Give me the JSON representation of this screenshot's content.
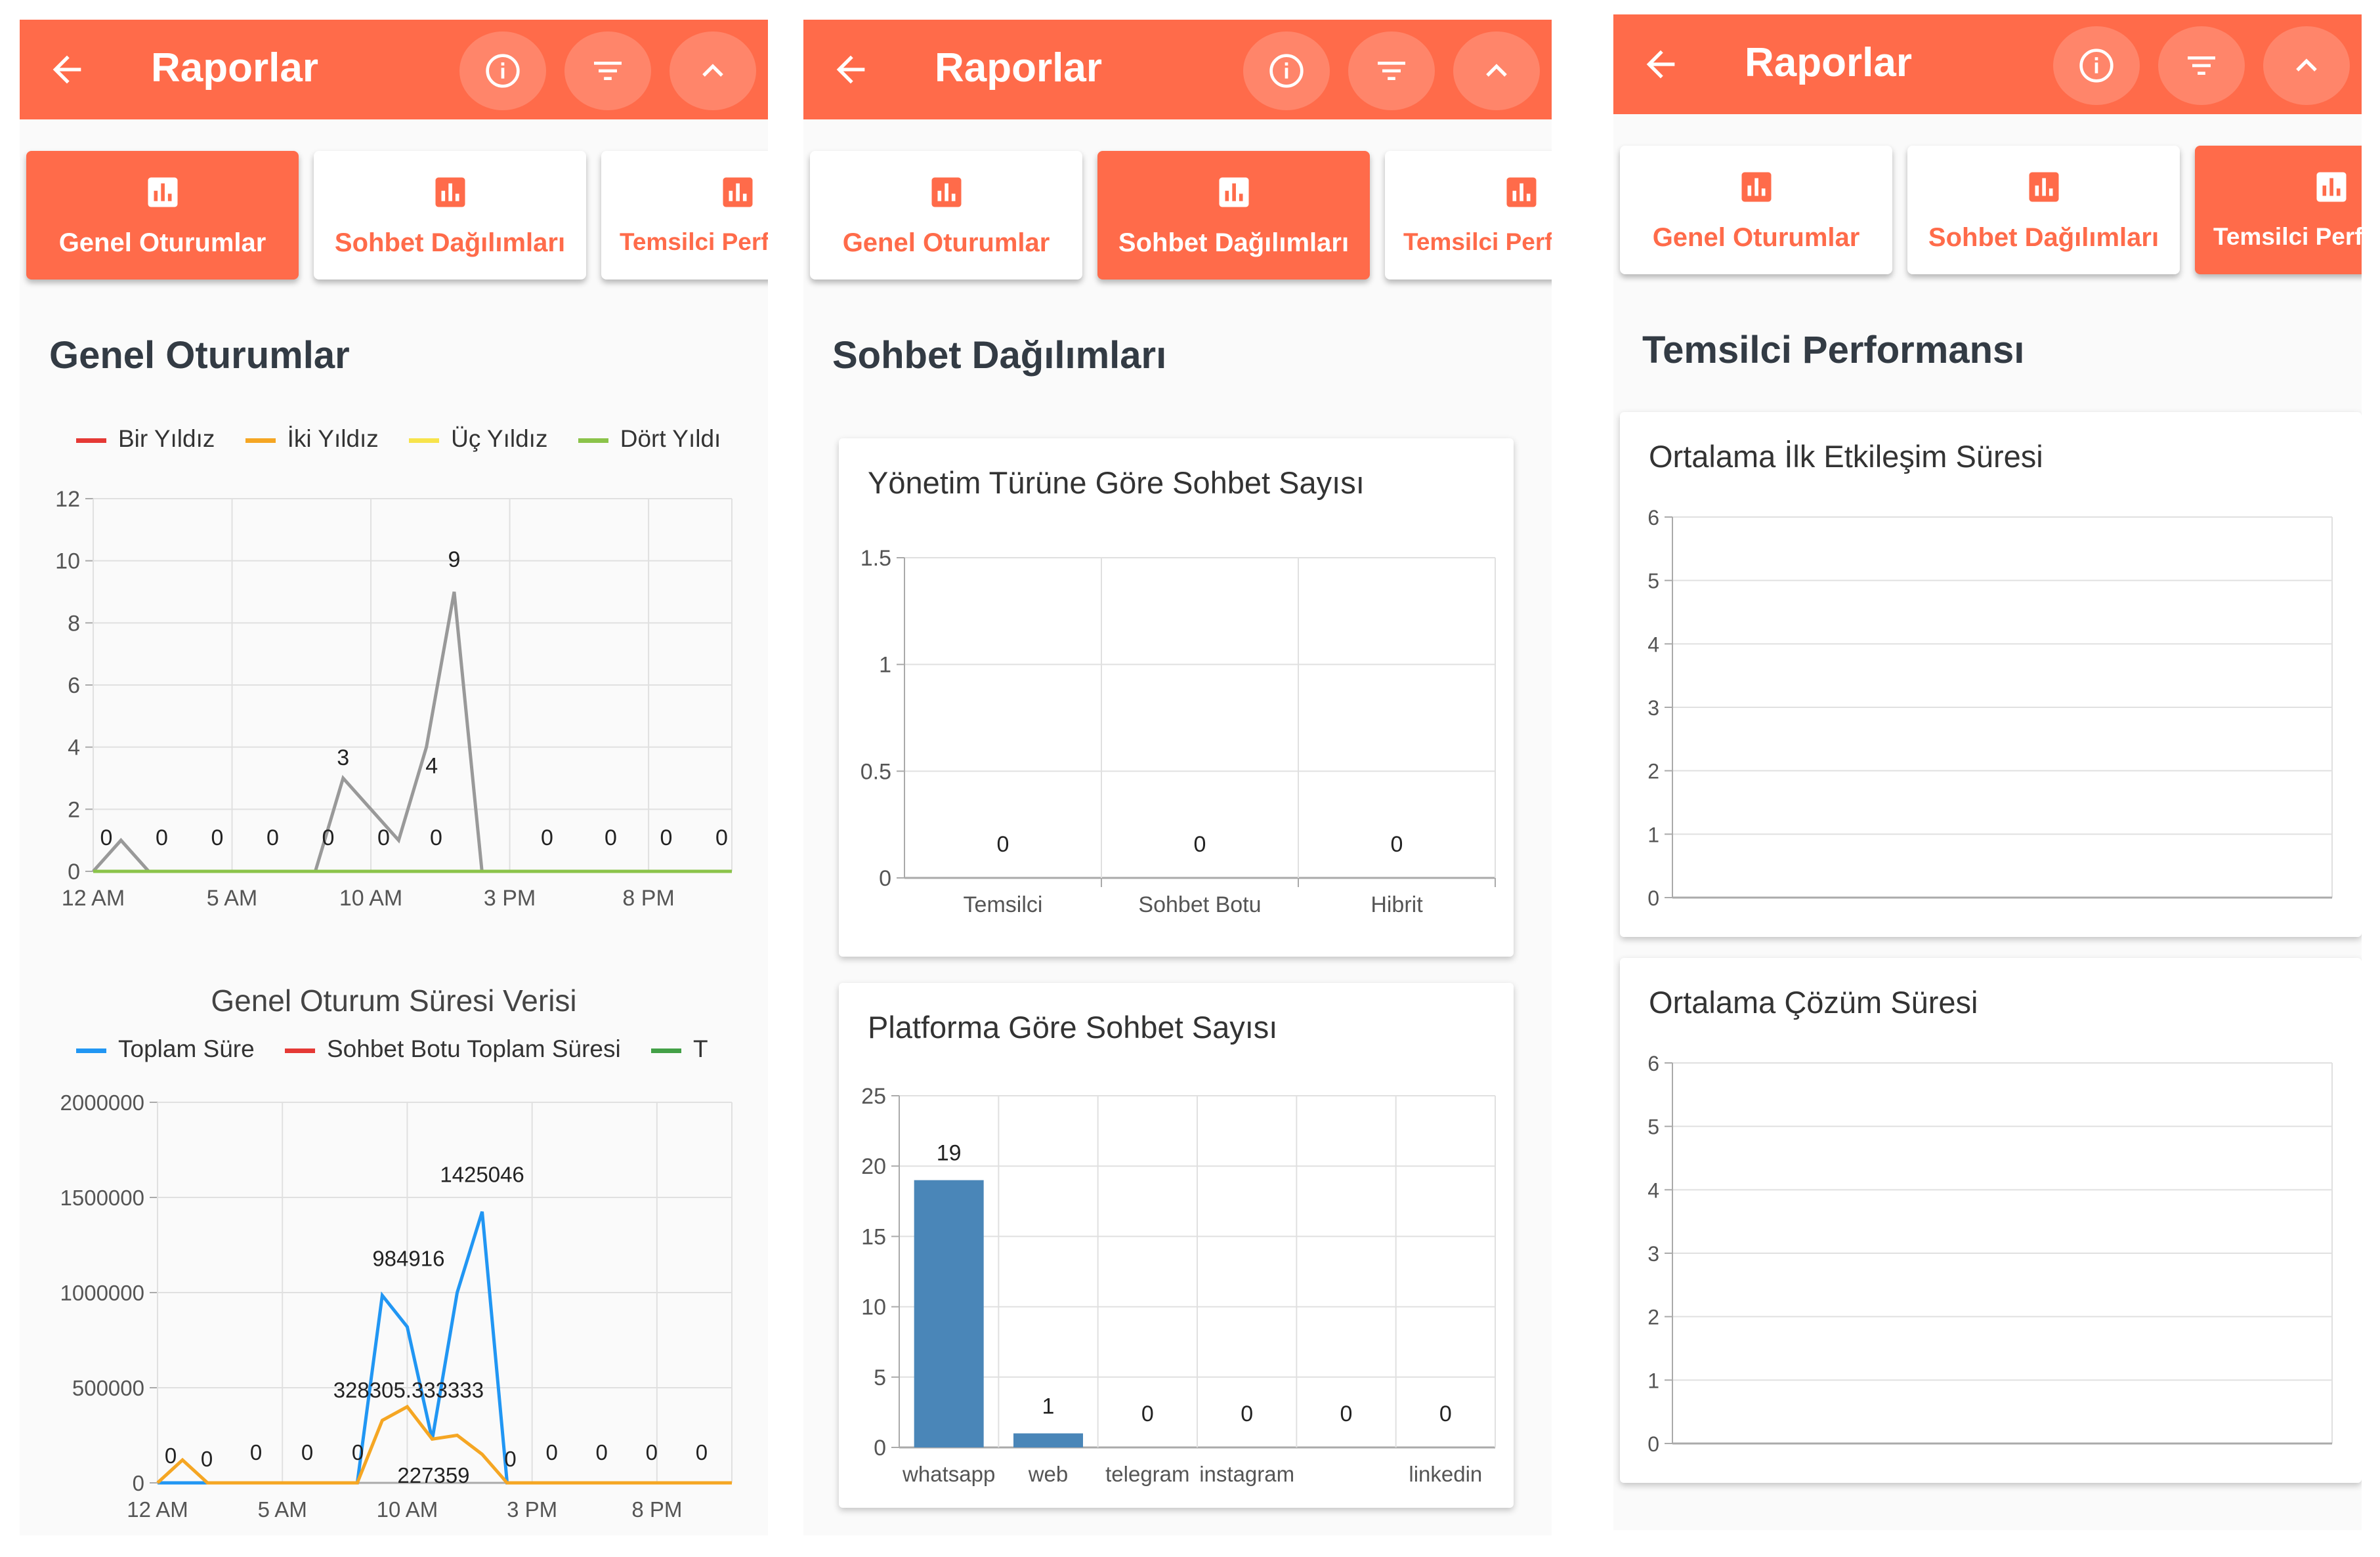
{
  "app": {
    "title": "Raporlar",
    "tabs": [
      "Genel Oturumlar",
      "Sohbet Dağılımları",
      "Temsilci Perf"
    ],
    "colors": {
      "accent": "#ff6b4a",
      "white": "#ffffff"
    },
    "icons": {
      "back": "arrow-left-icon",
      "info": "info-icon",
      "filter": "filter-icon",
      "collapse": "chevron-up-icon",
      "tab": "bar-chart-icon"
    }
  },
  "panel1": {
    "section_title": "Genel Oturumlar",
    "legend1": [
      "Bir Yıldız",
      "İki Yıldız",
      "Üç Yıldız",
      "Dört Yıldı"
    ],
    "legend1_colors": [
      "#e53935",
      "#f5a623",
      "#f7e34b",
      "#8bc34a"
    ],
    "chart2_title": "Genel Oturum Süresi Verisi",
    "legend2": [
      "Toplam Süre",
      "Sohbet Botu Toplam Süresi",
      "T"
    ],
    "legend2_colors": [
      "#2196f3",
      "#e53935",
      "#43a047"
    ]
  },
  "panel2": {
    "section_title": "Sohbet Dağılımları",
    "card1_title": "Yönetim Türüne Göre Sohbet Sayısı",
    "card2_title": "Platforma Göre Sohbet Sayısı"
  },
  "panel3": {
    "section_title": "Temsilci Performansı",
    "card1_title": "Ortalama İlk Etkileşim Süresi",
    "card2_title": "Ortalama Çözüm Süresi"
  },
  "chart_data": [
    {
      "type": "line",
      "x": [
        "12 AM",
        "1 AM",
        "2 AM",
        "3 AM",
        "4 AM",
        "5 AM",
        "6 AM",
        "7 AM",
        "8 AM",
        "9 AM",
        "10 AM",
        "11 AM",
        "12 PM",
        "1 PM",
        "2 PM",
        "3 PM",
        "4 PM",
        "5 PM",
        "6 PM",
        "7 PM",
        "8 PM",
        "9 PM",
        "10 PM",
        "11 PM"
      ],
      "xticks": [
        "12 AM",
        "5 AM",
        "10 AM",
        "3 PM",
        "8 PM"
      ],
      "yticks": [
        "0",
        "2",
        "4",
        "6",
        "8",
        "10",
        "12"
      ],
      "ylim": [
        0,
        12
      ],
      "series": [
        {
          "color": "#999999",
          "values": [
            0,
            1,
            0,
            0,
            0,
            0,
            0,
            0,
            0,
            3,
            2,
            1,
            4,
            9,
            0,
            0,
            0,
            0,
            0,
            0,
            0,
            0,
            0,
            0
          ]
        },
        {
          "color": "#8bc34a",
          "values": [
            0,
            0,
            0,
            0,
            0,
            0,
            0,
            0,
            0,
            0,
            0,
            0,
            0,
            0,
            0,
            0,
            0,
            0,
            0,
            0,
            0,
            0,
            0,
            0
          ]
        }
      ],
      "labels": [
        "0",
        "0",
        "0",
        "0",
        "0",
        "0",
        "3",
        "0",
        "4",
        "0",
        "9",
        "0",
        "0",
        "0",
        "0",
        "0"
      ]
    },
    {
      "type": "line",
      "title": "Genel Oturum Süresi Verisi",
      "x": [
        "12 AM",
        "1 AM",
        "2 AM",
        "3 AM",
        "4 AM",
        "5 AM",
        "6 AM",
        "7 AM",
        "8 AM",
        "9 AM",
        "10 AM",
        "11 AM",
        "12 PM",
        "1 PM",
        "2 PM",
        "3 PM",
        "4 PM",
        "5 PM",
        "6 PM",
        "7 PM",
        "8 PM",
        "9 PM",
        "10 PM",
        "11 PM"
      ],
      "xticks": [
        "12 AM",
        "5 AM",
        "10 AM",
        "3 PM",
        "8 PM"
      ],
      "yticks": [
        "0",
        "500000",
        "1000000",
        "1500000",
        "2000000"
      ],
      "ylim": [
        0,
        2000000
      ],
      "series": [
        {
          "name": "Toplam Süre",
          "color": "#2196f3",
          "values": [
            0,
            0,
            0,
            0,
            0,
            0,
            0,
            0,
            0,
            984916,
            820000,
            227359,
            1000000,
            1425046,
            0,
            0,
            0,
            0,
            0,
            0,
            0,
            0,
            0,
            0
          ]
        },
        {
          "color": "#f5a623",
          "values": [
            0,
            120000,
            0,
            0,
            0,
            0,
            0,
            0,
            0,
            328305.333333,
            400000,
            230000,
            250000,
            150000,
            0,
            0,
            0,
            0,
            0,
            0,
            0,
            0,
            0,
            0
          ]
        }
      ],
      "labels": [
        "0",
        "0",
        "0",
        "0",
        "0",
        "984916",
        "328305.333333",
        "1425046",
        "227359",
        "0",
        "0",
        "0",
        "0",
        "0"
      ]
    },
    {
      "type": "bar",
      "title": "Yönetim Türüne Göre Sohbet Sayısı",
      "categories": [
        "Temsilci",
        "Sohbet Botu",
        "Hibrit"
      ],
      "values": [
        0,
        0,
        0
      ],
      "yticks": [
        "0",
        "0.5",
        "1",
        "1.5"
      ],
      "ylim": [
        0,
        1.5
      ]
    },
    {
      "type": "bar",
      "title": "Platforma Göre Sohbet Sayısı",
      "categories": [
        "whatsapp",
        "web",
        "telegram",
        "instagram",
        "",
        "linkedin"
      ],
      "values": [
        19,
        1,
        0,
        0,
        0,
        0
      ],
      "yticks": [
        "0",
        "5",
        "10",
        "15",
        "20",
        "25"
      ],
      "ylim": [
        0,
        25
      ],
      "color": "#4a86b8"
    },
    {
      "type": "line",
      "title": "Ortalama İlk Etkileşim Süresi",
      "yticks": [
        "0",
        "1",
        "2",
        "3",
        "4",
        "5",
        "6"
      ],
      "ylim": [
        0,
        6
      ],
      "series": []
    },
    {
      "type": "line",
      "title": "Ortalama Çözüm Süresi",
      "yticks": [
        "0",
        "1",
        "2",
        "3",
        "4",
        "5",
        "6"
      ],
      "ylim": [
        0,
        6
      ],
      "series": []
    }
  ]
}
